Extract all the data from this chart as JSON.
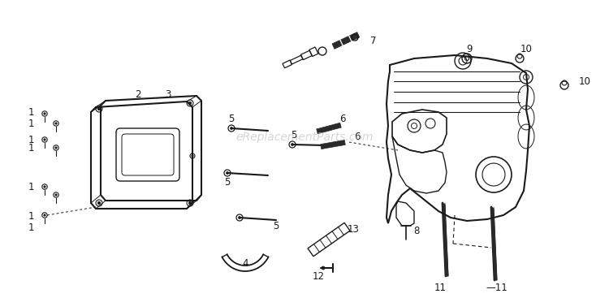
{
  "bg_color": "#ffffff",
  "fig_width": 7.5,
  "fig_height": 3.67,
  "dpi": 100,
  "watermark_text": "eReplacementParts.com",
  "watermark_color": "#bbbbbb",
  "watermark_alpha": 0.6,
  "watermark_fontsize": 10,
  "line_color": "#1a1a1a",
  "dark_fill": "#2a2a2a",
  "label_fontsize": 8.5
}
